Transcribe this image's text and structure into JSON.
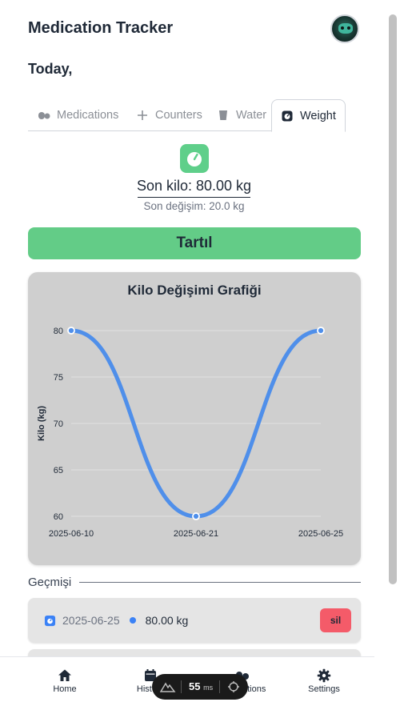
{
  "header": {
    "title": "Medication Tracker"
  },
  "greeting": "Today,",
  "tabs": [
    {
      "label": "Medications",
      "icon": "pills-icon"
    },
    {
      "label": "Counters",
      "icon": "plus-icon"
    },
    {
      "label": "Water",
      "icon": "glass-icon"
    },
    {
      "label": "Weight",
      "icon": "scale-icon",
      "active": true
    }
  ],
  "weight": {
    "last_weight": "Son kilo: 80.00 kg",
    "last_change": "Son değişim: 20.0 kg",
    "weigh_button": "Tartıl"
  },
  "chart_data": {
    "type": "line",
    "title": "Kilo Değişimi Grafiği",
    "ylabel": "Kilo (kg)",
    "xlabel": "",
    "categories": [
      "2025-06-10",
      "2025-06-21",
      "2025-06-25"
    ],
    "series": [
      {
        "values": [
          80,
          60,
          80
        ]
      }
    ],
    "ylim": [
      60,
      80
    ],
    "yticks": [
      60,
      65,
      70,
      75,
      80
    ],
    "grid": true,
    "color": "#4f8fea"
  },
  "history": {
    "title": "Geçmişi",
    "items": [
      {
        "date": "2025-06-25",
        "weight": "80.00 kg",
        "delete_label": "sil"
      }
    ]
  },
  "nav": [
    {
      "label": "Home",
      "icon": "home-icon"
    },
    {
      "label": "History",
      "icon": "calendar-icon"
    },
    {
      "label": "Medications",
      "icon": "pills-icon"
    },
    {
      "label": "Settings",
      "icon": "gear-icon"
    }
  ],
  "perf": {
    "value": "55",
    "unit": "ms"
  }
}
